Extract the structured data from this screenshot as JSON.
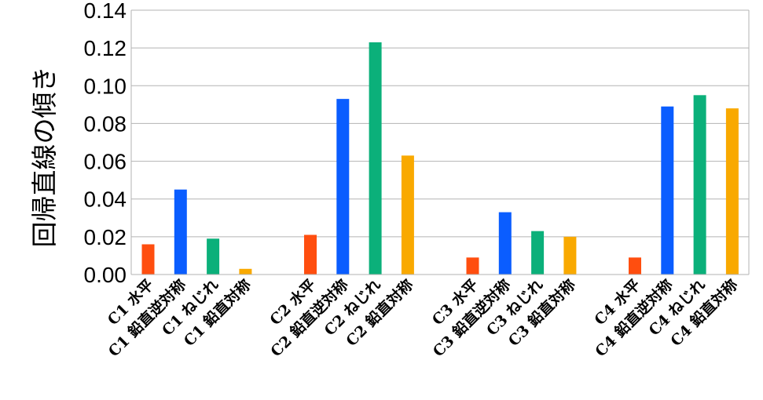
{
  "chart_data": {
    "type": "bar",
    "title": "",
    "xlabel": "",
    "ylabel": "回帰直線の傾き",
    "ylim": [
      0,
      0.14
    ],
    "yticks": [
      "0.00",
      "0.02",
      "0.04",
      "0.06",
      "0.08",
      "0.10",
      "0.12",
      "0.14"
    ],
    "grid": true,
    "legend": "none",
    "categories": [
      "C1 水平",
      "C1 鉛直逆対称",
      "C1 ねじれ",
      "C1 鉛直対称",
      "C2 水平",
      "C2 鉛直逆対称",
      "C2 ねじれ",
      "C2 鉛直対称",
      "C3 水平",
      "C3 鉛直逆対称",
      "C3 ねじれ",
      "C3 鉛直対称",
      "C4 水平",
      "C4 鉛直逆対称",
      "C4 ねじれ",
      "C4 鉛直対称"
    ],
    "values": [
      0.016,
      0.045,
      0.019,
      0.003,
      0.021,
      0.093,
      0.123,
      0.063,
      0.009,
      0.033,
      0.023,
      0.02,
      0.009,
      0.089,
      0.095,
      0.088
    ],
    "colors": [
      "#ff4e0f",
      "#0a5dff",
      "#0bb07a",
      "#f9a900",
      "#ff4e0f",
      "#0a5dff",
      "#0bb07a",
      "#f9a900",
      "#ff4e0f",
      "#0a5dff",
      "#0bb07a",
      "#f9a900",
      "#ff4e0f",
      "#0a5dff",
      "#0bb07a",
      "#f9a900"
    ]
  }
}
